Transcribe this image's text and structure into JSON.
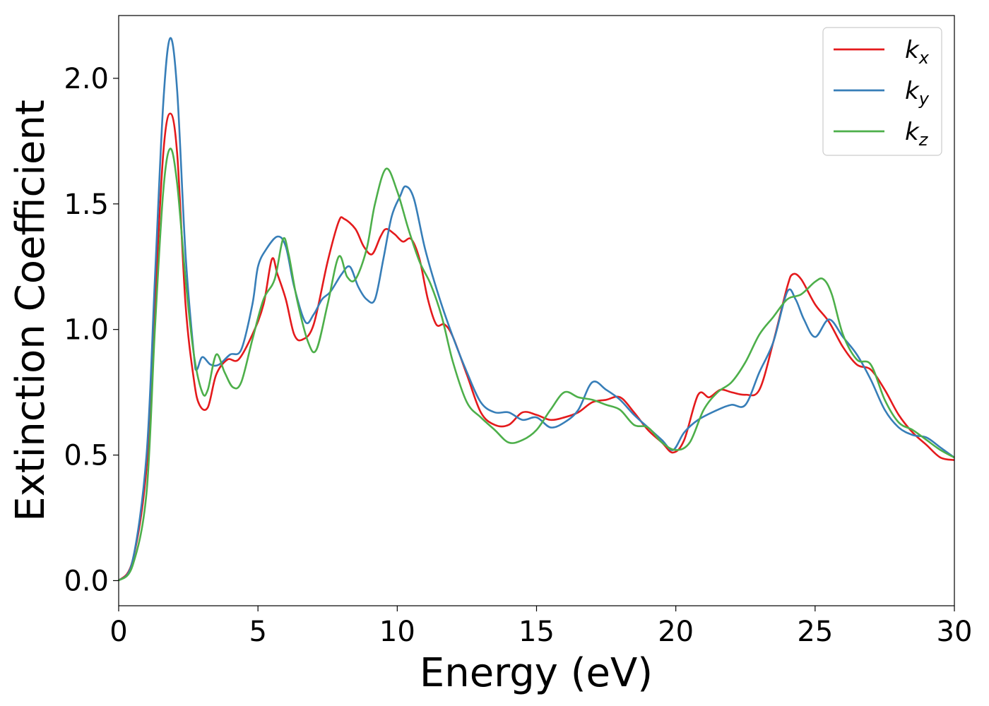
{
  "chart_data": {
    "type": "line",
    "xlabel": "Energy (eV)",
    "ylabel": "Extinction Coefficient",
    "xlim": [
      0,
      30
    ],
    "ylim": [
      -0.1,
      2.25
    ],
    "xticks": [
      0,
      5,
      10,
      15,
      20,
      25,
      30
    ],
    "yticks": [
      0.0,
      0.5,
      1.0,
      1.5,
      2.0
    ],
    "xtick_labels": [
      "0",
      "5",
      "10",
      "15",
      "20",
      "25",
      "30"
    ],
    "ytick_labels": [
      "0.0",
      "0.5",
      "1.0",
      "1.5",
      "2.0"
    ],
    "grid": false,
    "legend_position": "top-right",
    "series": [
      {
        "name": "k_x",
        "name_base": "k",
        "name_sub": "x",
        "color": "#e41a1c",
        "x": [
          0,
          0.5,
          1,
          1.3,
          1.6,
          1.85,
          2.1,
          2.4,
          2.7,
          2.9,
          3.2,
          3.5,
          3.9,
          4.3,
          4.8,
          5.2,
          5.5,
          5.7,
          6,
          6.3,
          6.6,
          7,
          7.5,
          7.9,
          8.1,
          8.5,
          8.8,
          9.1,
          9.4,
          9.6,
          9.9,
          10.2,
          10.5,
          10.8,
          11.1,
          11.4,
          11.7,
          12,
          12.5,
          13,
          13.5,
          14,
          14.5,
          15,
          15.5,
          16,
          16.5,
          17,
          17.5,
          18,
          18.5,
          19,
          19.5,
          19.9,
          20.3,
          20.8,
          21.2,
          21.6,
          22,
          22.5,
          23,
          23.5,
          24,
          24.2,
          24.5,
          25,
          25.5,
          26,
          26.5,
          27,
          27.5,
          28,
          28.5,
          29,
          29.5,
          30
        ],
        "values": [
          0,
          0.08,
          0.45,
          1.1,
          1.7,
          1.86,
          1.7,
          1.1,
          0.8,
          0.7,
          0.69,
          0.82,
          0.88,
          0.88,
          0.98,
          1.1,
          1.28,
          1.22,
          1.12,
          0.98,
          0.96,
          1.02,
          1.27,
          1.43,
          1.44,
          1.4,
          1.33,
          1.3,
          1.37,
          1.4,
          1.38,
          1.35,
          1.36,
          1.28,
          1.12,
          1.02,
          1.02,
          0.97,
          0.82,
          0.67,
          0.62,
          0.62,
          0.67,
          0.66,
          0.64,
          0.65,
          0.67,
          0.71,
          0.72,
          0.73,
          0.67,
          0.6,
          0.55,
          0.51,
          0.56,
          0.74,
          0.73,
          0.76,
          0.75,
          0.74,
          0.76,
          0.95,
          1.17,
          1.22,
          1.2,
          1.1,
          1.03,
          0.93,
          0.86,
          0.84,
          0.76,
          0.66,
          0.59,
          0.54,
          0.49,
          0.48
        ]
      },
      {
        "name": "k_y",
        "name_base": "k",
        "name_sub": "y",
        "color": "#377eb8",
        "x": [
          0,
          0.5,
          1,
          1.3,
          1.6,
          1.85,
          2.1,
          2.4,
          2.7,
          2.8,
          3,
          3.3,
          3.6,
          4,
          4.4,
          4.8,
          5,
          5.3,
          5.7,
          6,
          6.3,
          6.7,
          7,
          7.3,
          7.6,
          8,
          8.3,
          8.6,
          8.9,
          9.2,
          9.5,
          9.8,
          10.1,
          10.3,
          10.6,
          11,
          11.5,
          12,
          12.5,
          13,
          13.5,
          14,
          14.5,
          15,
          15.5,
          16,
          16.5,
          17,
          17.5,
          18,
          18.5,
          19,
          19.5,
          19.9,
          20.3,
          20.8,
          21.5,
          22,
          22.5,
          23,
          23.5,
          24,
          24.3,
          24.6,
          25,
          25.5,
          26,
          26.5,
          27,
          27.5,
          28,
          28.5,
          29,
          29.5,
          30
        ],
        "values": [
          0,
          0.08,
          0.5,
          1.2,
          1.9,
          2.16,
          1.95,
          1.3,
          0.9,
          0.84,
          0.89,
          0.86,
          0.86,
          0.9,
          0.92,
          1.1,
          1.25,
          1.32,
          1.37,
          1.33,
          1.17,
          1.03,
          1.06,
          1.12,
          1.15,
          1.22,
          1.25,
          1.17,
          1.12,
          1.12,
          1.28,
          1.45,
          1.53,
          1.57,
          1.52,
          1.32,
          1.13,
          0.97,
          0.83,
          0.71,
          0.67,
          0.67,
          0.64,
          0.65,
          0.61,
          0.63,
          0.68,
          0.79,
          0.76,
          0.72,
          0.66,
          0.61,
          0.56,
          0.52,
          0.59,
          0.64,
          0.68,
          0.7,
          0.7,
          0.83,
          0.95,
          1.15,
          1.12,
          1.04,
          0.97,
          1.04,
          0.97,
          0.9,
          0.8,
          0.68,
          0.61,
          0.58,
          0.57,
          0.53,
          0.49
        ]
      },
      {
        "name": "k_z",
        "name_base": "k",
        "name_sub": "z",
        "color": "#4daf4a",
        "x": [
          0,
          0.5,
          1,
          1.3,
          1.6,
          1.85,
          2.1,
          2.4,
          2.7,
          3,
          3.2,
          3.5,
          3.8,
          4.1,
          4.4,
          4.8,
          5.2,
          5.6,
          5.9,
          6.1,
          6.4,
          6.8,
          7.1,
          7.5,
          7.9,
          8.2,
          8.5,
          8.9,
          9.2,
          9.6,
          10,
          10.4,
          10.8,
          11.2,
          11.6,
          12,
          12.5,
          13,
          13.5,
          14,
          14.5,
          15,
          15.5,
          16,
          16.5,
          17,
          17.5,
          18,
          18.5,
          19,
          19.5,
          20,
          20.5,
          21,
          21.5,
          22,
          22.5,
          23,
          23.5,
          24,
          24.5,
          25,
          25.3,
          25.6,
          26,
          26.5,
          27,
          27.5,
          28,
          28.5,
          29,
          29.5,
          30
        ],
        "values": [
          0,
          0.06,
          0.35,
          1.0,
          1.55,
          1.72,
          1.58,
          1.2,
          0.9,
          0.75,
          0.76,
          0.9,
          0.83,
          0.77,
          0.79,
          0.96,
          1.12,
          1.2,
          1.36,
          1.3,
          1.12,
          0.95,
          0.92,
          1.1,
          1.29,
          1.21,
          1.2,
          1.32,
          1.5,
          1.64,
          1.55,
          1.4,
          1.27,
          1.18,
          1.05,
          0.87,
          0.71,
          0.65,
          0.6,
          0.55,
          0.56,
          0.6,
          0.68,
          0.75,
          0.73,
          0.72,
          0.7,
          0.68,
          0.62,
          0.61,
          0.55,
          0.52,
          0.55,
          0.68,
          0.75,
          0.79,
          0.87,
          0.98,
          1.05,
          1.12,
          1.14,
          1.19,
          1.2,
          1.14,
          0.98,
          0.88,
          0.86,
          0.72,
          0.63,
          0.6,
          0.56,
          0.52,
          0.49
        ]
      }
    ]
  }
}
